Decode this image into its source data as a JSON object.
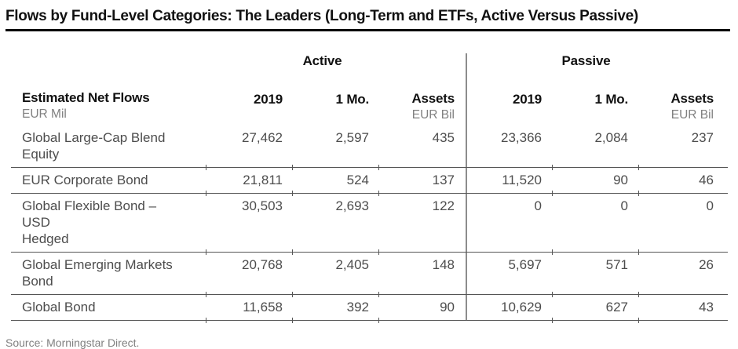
{
  "title": "Flows by Fund-Level Categories: The Leaders (Long-Term and ETFs, Active Versus Passive)",
  "table": {
    "group_headers": {
      "active": "Active",
      "passive": "Passive"
    },
    "header": {
      "label": "Estimated Net Flows",
      "label_sub": "EUR Mil",
      "col_2019": "2019",
      "col_1mo": "1 Mo.",
      "col_assets": "Assets",
      "assets_sub": "EUR Bil"
    },
    "rows": [
      {
        "label_lines": [
          "Global Large-Cap Blend Equity"
        ],
        "active_2019": "27,462",
        "active_1mo": "2,597",
        "active_assets": "435",
        "passive_2019": "23,366",
        "passive_1mo": "2,084",
        "passive_assets": "237"
      },
      {
        "label_lines": [
          "EUR Corporate Bond"
        ],
        "active_2019": "21,811",
        "active_1mo": "524",
        "active_assets": "137",
        "passive_2019": "11,520",
        "passive_1mo": "90",
        "passive_assets": "46"
      },
      {
        "label_lines": [
          "Global Flexible Bond – USD",
          "Hedged"
        ],
        "active_2019": "30,503",
        "active_1mo": "2,693",
        "active_assets": "122",
        "passive_2019": "0",
        "passive_1mo": "0",
        "passive_assets": "0"
      },
      {
        "label_lines": [
          "Global Emerging Markets",
          "Bond"
        ],
        "active_2019": "20,768",
        "active_1mo": "2,405",
        "active_assets": "148",
        "passive_2019": "5,697",
        "passive_1mo": "571",
        "passive_assets": "26"
      },
      {
        "label_lines": [
          "Global Bond"
        ],
        "active_2019": "11,658",
        "active_1mo": "392",
        "active_assets": "90",
        "passive_2019": "10,629",
        "passive_1mo": "627",
        "passive_assets": "43"
      }
    ]
  },
  "source": "Source: Morningstar Direct.",
  "colors": {
    "text_primary": "#111111",
    "text_data": "#4d4d4d",
    "text_secondary": "#808080",
    "rule": "#555555",
    "section_divider": "#8c8c8c",
    "title_rule": "#000000"
  },
  "chart_data": {
    "type": "table",
    "title": "Flows by Fund-Level Categories: The Leaders (Long-Term and ETFs, Active Versus Passive)",
    "units": {
      "flows": "EUR Mil",
      "assets": "EUR Bil"
    },
    "column_groups": [
      "Active",
      "Passive"
    ],
    "columns": [
      "Estimated Net Flows",
      "Active 2019",
      "Active 1 Mo.",
      "Active Assets (EUR Bil)",
      "Passive 2019",
      "Passive 1 Mo.",
      "Passive Assets (EUR Bil)"
    ],
    "rows": [
      [
        "Global Large-Cap Blend Equity",
        27462,
        2597,
        435,
        23366,
        2084,
        237
      ],
      [
        "EUR Corporate Bond",
        21811,
        524,
        137,
        11520,
        90,
        46
      ],
      [
        "Global Flexible Bond – USD Hedged",
        30503,
        2693,
        122,
        0,
        0,
        0
      ],
      [
        "Global Emerging Markets Bond",
        20768,
        2405,
        148,
        5697,
        571,
        26
      ],
      [
        "Global Bond",
        11658,
        392,
        90,
        10629,
        627,
        43
      ]
    ],
    "source": "Source: Morningstar Direct."
  }
}
